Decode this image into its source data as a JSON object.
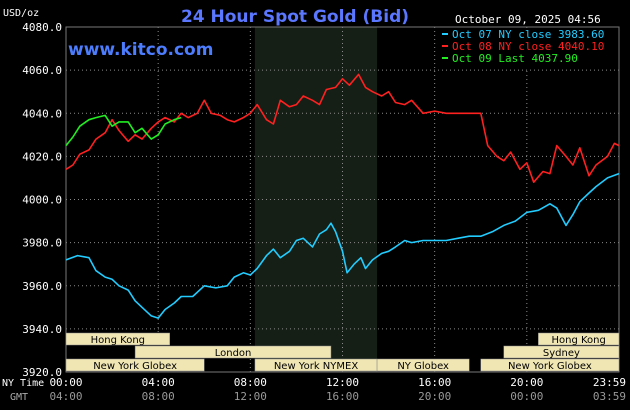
{
  "title": "24 Hour Spot Gold (Bid)",
  "units_label": "USD/oz",
  "date_label": "October 09, 2025 04:56",
  "brand": "www.kitco.com",
  "legend": [
    {
      "text": "Oct 07 NY close 3983.60",
      "color": "#22ccff"
    },
    {
      "text": "Oct 08 NY close 4040.10",
      "color": "#ff2020"
    },
    {
      "text": "Oct 09 Last 4037.90",
      "color": "#22ee22"
    }
  ],
  "x_row_labels": {
    "nytime": "NY Time",
    "gmt": "GMT"
  },
  "sessions": [
    {
      "label": "Hong Kong",
      "start": 0,
      "end": 4.5,
      "row": 0
    },
    {
      "label": "Hong Kong",
      "start": 20.5,
      "end": 24,
      "row": 0
    },
    {
      "label": "London",
      "start": 3,
      "end": 11.5,
      "row": 1
    },
    {
      "label": "Sydney",
      "start": 19,
      "end": 24,
      "row": 1
    },
    {
      "label": "New York Globex",
      "start": 0,
      "end": 6,
      "row": 2
    },
    {
      "label": "New York NYMEX",
      "start": 8.2,
      "end": 13.5,
      "row": 2
    },
    {
      "label": "NY Globex",
      "start": 13.5,
      "end": 17.5,
      "row": 2
    },
    {
      "label": "New York Globex",
      "start": 18,
      "end": 24,
      "row": 2
    }
  ],
  "chart_data": {
    "type": "line",
    "title": "24 Hour Spot Gold (Bid)",
    "ylabel": "USD/oz",
    "ylim": [
      3920,
      4080
    ],
    "xlim": [
      0,
      24
    ],
    "yticks": [
      3920,
      3940,
      3960,
      3980,
      4000,
      4020,
      4040,
      4060,
      4080
    ],
    "xticks": [
      {
        "t": 0,
        "ny": "00:00",
        "gmt": "04:00"
      },
      {
        "t": 4,
        "ny": "04:00",
        "gmt": "08:00"
      },
      {
        "t": 8,
        "ny": "08:00",
        "gmt": "12:00"
      },
      {
        "t": 12,
        "ny": "12:00",
        "gmt": "16:00"
      },
      {
        "t": 16,
        "ny": "16:00",
        "gmt": "20:00"
      },
      {
        "t": 20,
        "ny": "20:00",
        "gmt": "00:00"
      },
      {
        "t": 24,
        "ny": "23:59",
        "gmt": "03:59"
      }
    ],
    "shaded_range": [
      8.2,
      13.5
    ],
    "grid": true,
    "series": [
      {
        "name": "Oct 07 NY close 3983.60",
        "color": "#22ccff",
        "points": [
          [
            0,
            3972
          ],
          [
            0.5,
            3974
          ],
          [
            1,
            3973
          ],
          [
            1.3,
            3967
          ],
          [
            1.7,
            3964
          ],
          [
            2,
            3963
          ],
          [
            2.3,
            3960
          ],
          [
            2.7,
            3958
          ],
          [
            3,
            3953
          ],
          [
            3.3,
            3950
          ],
          [
            3.7,
            3946
          ],
          [
            4,
            3945
          ],
          [
            4.3,
            3949
          ],
          [
            4.7,
            3952
          ],
          [
            5,
            3955
          ],
          [
            5.5,
            3955
          ],
          [
            6,
            3960
          ],
          [
            6.5,
            3959
          ],
          [
            7,
            3960
          ],
          [
            7.3,
            3964
          ],
          [
            7.7,
            3966
          ],
          [
            8,
            3965
          ],
          [
            8.3,
            3968
          ],
          [
            8.7,
            3974
          ],
          [
            9,
            3977
          ],
          [
            9.3,
            3973
          ],
          [
            9.7,
            3976
          ],
          [
            10,
            3981
          ],
          [
            10.3,
            3982
          ],
          [
            10.7,
            3978
          ],
          [
            11,
            3984
          ],
          [
            11.3,
            3986
          ],
          [
            11.5,
            3989
          ],
          [
            11.7,
            3985
          ],
          [
            12,
            3976
          ],
          [
            12.2,
            3966
          ],
          [
            12.5,
            3970
          ],
          [
            12.8,
            3973
          ],
          [
            13,
            3968
          ],
          [
            13.3,
            3972
          ],
          [
            13.7,
            3975
          ],
          [
            14,
            3976
          ],
          [
            14.3,
            3978
          ],
          [
            14.7,
            3981
          ],
          [
            15,
            3980
          ],
          [
            15.5,
            3981
          ],
          [
            16,
            3981
          ],
          [
            16.5,
            3981
          ],
          [
            17,
            3982
          ],
          [
            17.5,
            3983
          ],
          [
            18,
            3983
          ],
          [
            18.5,
            3985
          ],
          [
            19,
            3988
          ],
          [
            19.5,
            3990
          ],
          [
            20,
            3994
          ],
          [
            20.5,
            3995
          ],
          [
            21,
            3998
          ],
          [
            21.3,
            3996
          ],
          [
            21.7,
            3988
          ],
          [
            22,
            3993
          ],
          [
            22.3,
            3999
          ],
          [
            22.7,
            4003
          ],
          [
            23,
            4006
          ],
          [
            23.5,
            4010
          ],
          [
            24,
            4012
          ]
        ]
      },
      {
        "name": "Oct 08 NY close 4040.10",
        "color": "#ff2020",
        "points": [
          [
            0,
            4014
          ],
          [
            0.3,
            4016
          ],
          [
            0.6,
            4021
          ],
          [
            1,
            4023
          ],
          [
            1.3,
            4028
          ],
          [
            1.7,
            4031
          ],
          [
            2,
            4037
          ],
          [
            2.3,
            4032
          ],
          [
            2.7,
            4027
          ],
          [
            3,
            4030
          ],
          [
            3.3,
            4028
          ],
          [
            3.7,
            4033
          ],
          [
            4,
            4036
          ],
          [
            4.3,
            4038
          ],
          [
            4.7,
            4036
          ],
          [
            5,
            4040
          ],
          [
            5.3,
            4038
          ],
          [
            5.7,
            4040
          ],
          [
            6,
            4046
          ],
          [
            6.3,
            4040
          ],
          [
            6.7,
            4039
          ],
          [
            7,
            4037
          ],
          [
            7.3,
            4036
          ],
          [
            7.7,
            4038
          ],
          [
            8,
            4040
          ],
          [
            8.3,
            4044
          ],
          [
            8.7,
            4037
          ],
          [
            9,
            4035
          ],
          [
            9.3,
            4046
          ],
          [
            9.7,
            4043
          ],
          [
            10,
            4044
          ],
          [
            10.3,
            4048
          ],
          [
            10.7,
            4046
          ],
          [
            11,
            4044
          ],
          [
            11.3,
            4051
          ],
          [
            11.7,
            4052
          ],
          [
            12,
            4056
          ],
          [
            12.3,
            4053
          ],
          [
            12.7,
            4058
          ],
          [
            13,
            4052
          ],
          [
            13.3,
            4050
          ],
          [
            13.7,
            4048
          ],
          [
            14,
            4050
          ],
          [
            14.3,
            4045
          ],
          [
            14.7,
            4044
          ],
          [
            15,
            4046
          ],
          [
            15.5,
            4040
          ],
          [
            16,
            4041
          ],
          [
            16.5,
            4040
          ],
          [
            17,
            4040
          ],
          [
            17.5,
            4040
          ],
          [
            18,
            4040
          ],
          [
            18.3,
            4025
          ],
          [
            18.7,
            4020
          ],
          [
            19,
            4018
          ],
          [
            19.3,
            4022
          ],
          [
            19.7,
            4014
          ],
          [
            20,
            4017
          ],
          [
            20.3,
            4008
          ],
          [
            20.7,
            4013
          ],
          [
            21,
            4012
          ],
          [
            21.3,
            4025
          ],
          [
            21.7,
            4020
          ],
          [
            22,
            4016
          ],
          [
            22.3,
            4024
          ],
          [
            22.7,
            4011
          ],
          [
            23,
            4016
          ],
          [
            23.5,
            4020
          ],
          [
            23.8,
            4026
          ],
          [
            24,
            4025
          ]
        ]
      },
      {
        "name": "Oct 09 Last 4037.90",
        "color": "#22ee22",
        "points": [
          [
            0,
            4025
          ],
          [
            0.3,
            4029
          ],
          [
            0.6,
            4034
          ],
          [
            1,
            4037
          ],
          [
            1.3,
            4038
          ],
          [
            1.7,
            4039
          ],
          [
            2,
            4034
          ],
          [
            2.3,
            4036
          ],
          [
            2.7,
            4036
          ],
          [
            3,
            4031
          ],
          [
            3.3,
            4033
          ],
          [
            3.7,
            4028
          ],
          [
            4,
            4030
          ],
          [
            4.3,
            4035
          ],
          [
            4.7,
            4037
          ],
          [
            5,
            4038
          ]
        ]
      }
    ]
  }
}
